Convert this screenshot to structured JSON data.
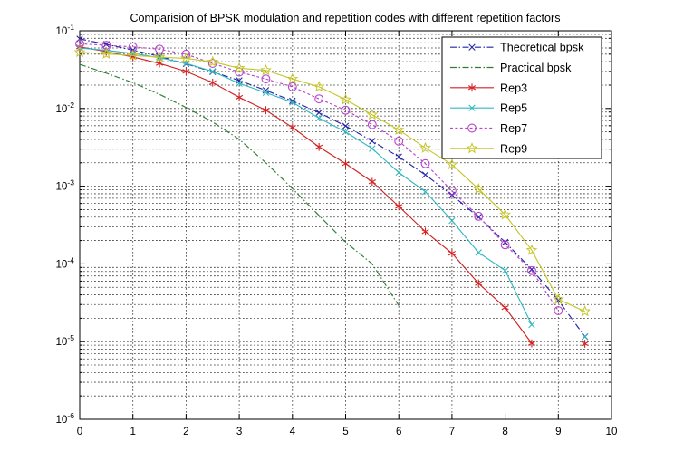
{
  "chart_data": {
    "type": "line",
    "title": "Comparision of BPSK modulation and repetition codes with different repetition factors",
    "xlabel": "",
    "ylabel": "",
    "x_ticks": [
      0,
      1,
      2,
      3,
      4,
      5,
      6,
      7,
      8,
      9,
      10
    ],
    "xlim": [
      0,
      10
    ],
    "y_scale": "log",
    "y_exponents": [
      -1,
      -2,
      -3,
      -4,
      -5,
      -6
    ],
    "ylim": [
      1e-06,
      0.1
    ],
    "grid": true,
    "minor_grid": true,
    "grid_color": "#333333",
    "legend_position": "top-right",
    "legend_labels": [
      "Theoretical bpsk",
      "Practical bpsk",
      "Rep3",
      "Rep5",
      "Rep7",
      "Rep9"
    ],
    "series": [
      {
        "name": "Theoretical bpsk",
        "color": "#2525a8",
        "line": "dashdot",
        "marker": "x",
        "segments": [
          [
            [
              0,
              0.0786
            ],
            [
              0.5,
              0.0669
            ],
            [
              1,
              0.0563
            ],
            [
              1.5,
              0.0468
            ],
            [
              2,
              0.0375
            ],
            [
              2.5,
              0.0296
            ],
            [
              3,
              0.0229
            ],
            [
              3.5,
              0.0171
            ],
            [
              4,
              0.0125
            ],
            [
              4.5,
              0.00885
            ],
            [
              5,
              0.00595
            ],
            [
              5.5,
              0.0038
            ],
            [
              6,
              0.00239
            ],
            [
              6.5,
              0.0014
            ],
            [
              7,
              0.00077
            ],
            [
              7.5,
              0.0004
            ],
            [
              8,
              0.00019
            ],
            [
              8.5,
              8.5e-05
            ],
            [
              9,
              3.4e-05
            ],
            [
              9.5,
              1.16e-05
            ]
          ]
        ]
      },
      {
        "name": "Practical bpsk",
        "color": "#2e7d32",
        "line": "dashdot",
        "marker": "none",
        "segments": [
          [
            [
              0,
              0.037
            ],
            [
              0.5,
              0.0285
            ],
            [
              1,
              0.0215
            ],
            [
              1.5,
              0.0152
            ],
            [
              2,
              0.0103
            ],
            [
              2.5,
              0.0067
            ],
            [
              3,
              0.004
            ],
            [
              3.5,
              0.002
            ],
            [
              4,
              0.00093
            ],
            [
              4.5,
              0.00042
            ],
            [
              5,
              0.00019
            ],
            [
              5.5,
              0.0001
            ],
            [
              6,
              2.9e-05
            ]
          ]
        ]
      },
      {
        "name": "Rep3",
        "color": "#d42222",
        "line": "solid",
        "marker": "asterisk",
        "segments": [
          [
            [
              0,
              0.062
            ],
            [
              0.5,
              0.054
            ],
            [
              1,
              0.046
            ],
            [
              1.5,
              0.038
            ],
            [
              2,
              0.03
            ],
            [
              2.5,
              0.0215
            ],
            [
              3,
              0.0139
            ],
            [
              3.5,
              0.0095
            ],
            [
              4,
              0.0057
            ],
            [
              4.5,
              0.0032
            ],
            [
              5,
              0.00195
            ],
            [
              5.5,
              0.00114
            ],
            [
              6,
              0.00055
            ],
            [
              6.5,
              0.00026
            ],
            [
              7,
              0.000137
            ],
            [
              7.5,
              5.6e-05
            ],
            [
              8,
              2.74e-05
            ],
            [
              8.5,
              9.5e-06
            ]
          ],
          [
            [
              9.5,
              9.4e-06
            ]
          ]
        ]
      },
      {
        "name": "Rep5",
        "color": "#33b8c0",
        "line": "solid",
        "marker": "x",
        "segments": [
          [
            [
              0,
              0.06
            ],
            [
              0.5,
              0.056
            ],
            [
              1,
              0.051
            ],
            [
              1.5,
              0.045
            ],
            [
              2,
              0.038
            ],
            [
              2.5,
              0.03
            ],
            [
              3,
              0.021
            ],
            [
              3.5,
              0.016
            ],
            [
              4,
              0.012
            ],
            [
              4.5,
              0.0075
            ],
            [
              5,
              0.005
            ],
            [
              5.5,
              0.00305
            ],
            [
              6,
              0.0015
            ],
            [
              6.5,
              0.00085
            ],
            [
              7,
              0.00036
            ],
            [
              7.5,
              0.00014
            ],
            [
              8,
              8.2e-05
            ],
            [
              8.5,
              1.65e-05
            ]
          ],
          [
            [
              9.5,
              1.15e-05
            ]
          ]
        ]
      },
      {
        "name": "Rep7",
        "color": "#bb44cc",
        "line": "dashed",
        "marker": "circle",
        "segments": [
          [
            [
              0,
              0.068
            ],
            [
              0.5,
              0.065
            ],
            [
              1,
              0.062
            ],
            [
              1.5,
              0.058
            ],
            [
              2,
              0.05
            ],
            [
              2.5,
              0.038
            ],
            [
              3,
              0.0295
            ],
            [
              3.5,
              0.024
            ],
            [
              4,
              0.019
            ],
            [
              4.5,
              0.0133
            ],
            [
              5,
              0.0095
            ],
            [
              5.5,
              0.0062
            ],
            [
              6,
              0.0038
            ],
            [
              6.5,
              0.00195
            ],
            [
              7,
              0.00087
            ],
            [
              7.5,
              0.00041
            ],
            [
              8,
              0.000176
            ],
            [
              8.5,
              8.2e-05
            ],
            [
              9,
              2.5e-05
            ]
          ]
        ]
      },
      {
        "name": "Rep9",
        "color": "#c6c62e",
        "line": "solid",
        "marker": "star",
        "segments": [
          [
            [
              0,
              0.053
            ],
            [
              0.5,
              0.0505
            ],
            [
              1,
              0.048
            ],
            [
              1.5,
              0.0458
            ],
            [
              2,
              0.044
            ],
            [
              2.5,
              0.0398
            ],
            [
              3,
              0.033
            ],
            [
              3.5,
              0.031
            ],
            [
              4,
              0.024
            ],
            [
              4.5,
              0.019
            ],
            [
              5,
              0.013
            ],
            [
              5.5,
              0.0083
            ],
            [
              6,
              0.0053
            ],
            [
              6.5,
              0.0031
            ],
            [
              7,
              0.0019
            ],
            [
              7.5,
              0.00092
            ],
            [
              8,
              0.00043
            ],
            [
              8.5,
              0.00015
            ],
            [
              9,
              3.5e-05
            ],
            [
              9.5,
              2.45e-05
            ]
          ]
        ]
      }
    ]
  }
}
